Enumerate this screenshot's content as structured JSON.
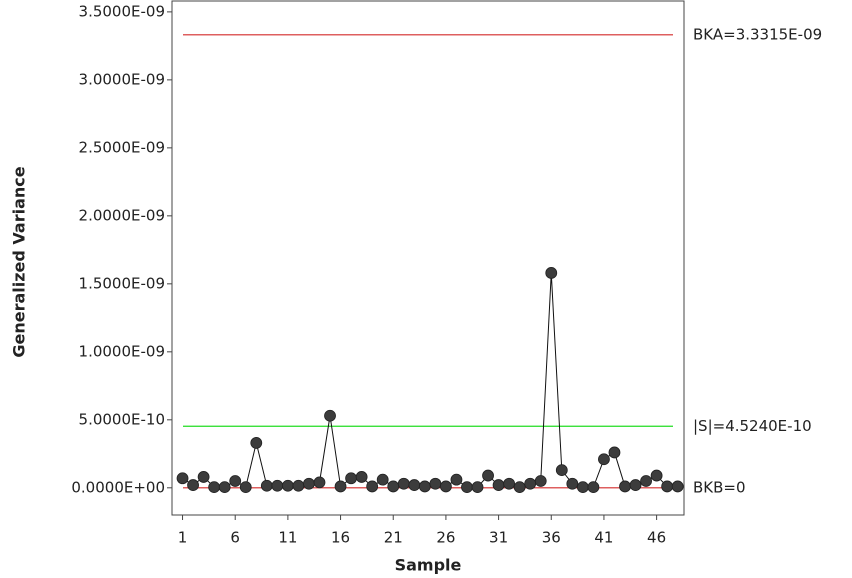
{
  "chart_data": {
    "type": "line",
    "x_label": "Sample",
    "y_label": "Generalized Variance",
    "x": [
      1,
      2,
      3,
      4,
      5,
      6,
      7,
      8,
      9,
      10,
      11,
      12,
      13,
      14,
      15,
      16,
      17,
      18,
      19,
      20,
      21,
      22,
      23,
      24,
      25,
      26,
      27,
      28,
      29,
      30,
      31,
      32,
      33,
      34,
      35,
      36,
      37,
      38,
      39,
      40,
      41,
      42,
      43,
      44,
      45,
      46,
      47,
      48
    ],
    "series": [
      {
        "color": "#3c3c3c",
        "values": [
          7e-11,
          2e-11,
          8e-11,
          5e-12,
          5e-12,
          5e-11,
          5e-12,
          3.3e-10,
          1.5e-11,
          1.5e-11,
          1.5e-11,
          1.5e-11,
          3e-11,
          4e-11,
          5.3e-10,
          1e-11,
          7e-11,
          8e-11,
          1e-11,
          6e-11,
          1e-11,
          3e-11,
          2e-11,
          1e-11,
          3e-11,
          1e-11,
          6e-11,
          5e-12,
          5e-12,
          9e-11,
          2e-11,
          3e-11,
          5e-12,
          3e-11,
          5e-11,
          1.58e-09,
          1.3e-10,
          3e-11,
          5e-12,
          5e-12,
          2.1e-10,
          2.6e-10,
          1e-11,
          2e-11,
          5e-11,
          9e-11,
          1e-11,
          1e-11
        ]
      }
    ],
    "reference_lines": [
      {
        "value": 3.3315e-09,
        "label": "BKA=3.3315E-09",
        "color": "#d42a2a"
      },
      {
        "value": 4.524e-10,
        "label": "|S|=4.5240E-10",
        "color": "#22dd22"
      },
      {
        "value": 0,
        "label": "BKB=0",
        "color": "#d42a2a"
      }
    ],
    "xlim": [
      0,
      48.6
    ],
    "ylim": [
      -2e-10,
      3.58e-09
    ],
    "xticks": [
      1,
      6,
      11,
      16,
      21,
      26,
      31,
      36,
      41,
      46
    ],
    "yticks": [
      {
        "value": 0,
        "label": "0.0000E+00"
      },
      {
        "value": 5e-10,
        "label": "5.0000E-10"
      },
      {
        "value": 1e-09,
        "label": "1.0000E-09"
      },
      {
        "value": 1.5e-09,
        "label": "1.5000E-09"
      },
      {
        "value": 2e-09,
        "label": "2.0000E-09"
      },
      {
        "value": 2.5e-09,
        "label": "2.5000E-09"
      },
      {
        "value": 3e-09,
        "label": "3.0000E-09"
      },
      {
        "value": 3.5e-09,
        "label": "3.5000E-09"
      }
    ]
  }
}
